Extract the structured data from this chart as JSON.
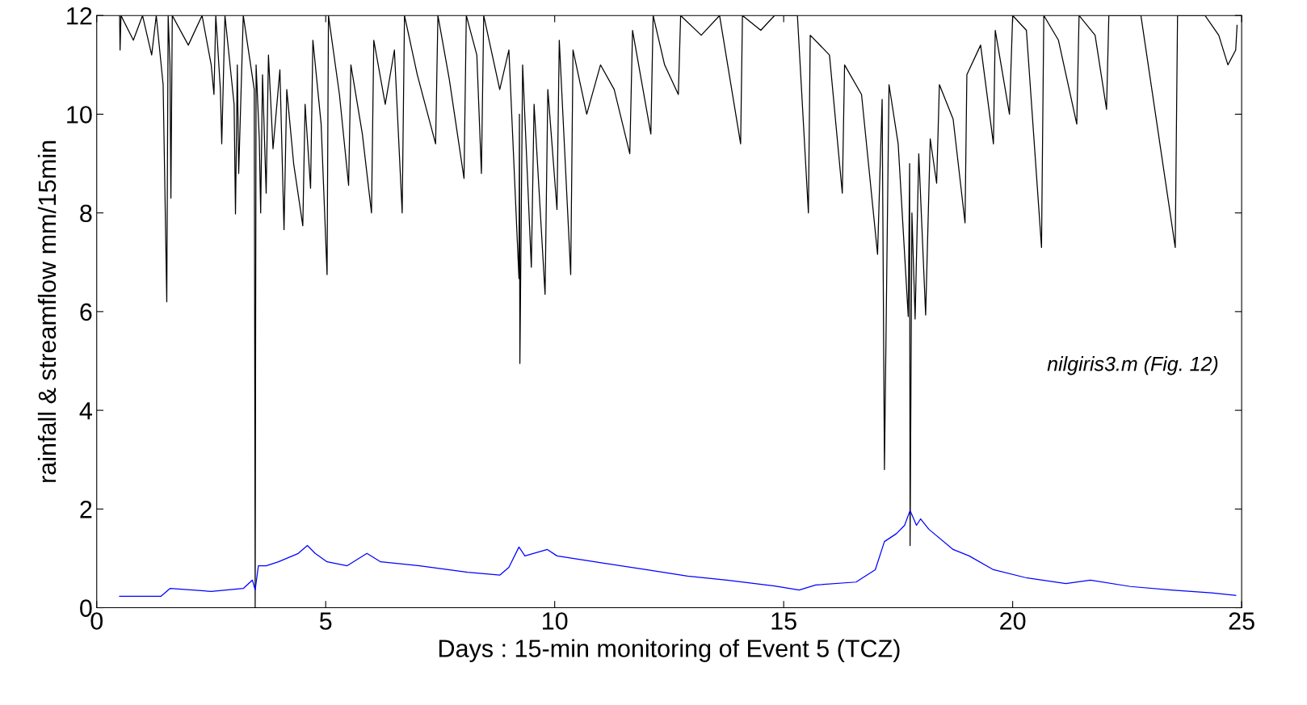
{
  "chart_data": {
    "type": "line",
    "xlabel": "Days : 15-min monitoring of Event 5 (TCZ)",
    "ylabel": "rainfall & streamflow mm/15min",
    "annotations": [
      "nilgiris3.m (Fig. 12)"
    ],
    "xlim": [
      0,
      25
    ],
    "ylim": [
      0,
      12
    ],
    "xticks": [
      0,
      5,
      10,
      15,
      20,
      25
    ],
    "yticks": [
      0,
      2,
      4,
      6,
      8,
      10,
      12
    ],
    "grid": false,
    "legend": false,
    "series": [
      {
        "color": "#000000",
        "x": [
          0.5,
          0.51,
          0.53,
          0.8,
          1.0,
          1.2,
          1.3,
          1.45,
          1.53,
          1.56,
          1.6,
          1.62,
          1.65,
          2.0,
          2.3,
          2.5,
          2.56,
          2.6,
          2.7,
          2.73,
          2.8,
          3.0,
          3.03,
          3.07,
          3.1,
          3.2,
          3.44,
          3.46,
          3.48,
          3.55,
          3.58,
          3.62,
          3.7,
          3.75,
          3.85,
          4.0,
          4.09,
          4.15,
          4.3,
          4.5,
          4.55,
          4.67,
          4.72,
          4.9,
          5.03,
          5.06,
          5.3,
          5.5,
          5.55,
          5.8,
          6.0,
          6.05,
          6.3,
          6.5,
          6.67,
          6.72,
          7.0,
          7.4,
          7.45,
          7.7,
          8.02,
          8.07,
          8.3,
          8.4,
          8.45,
          8.8,
          9.0,
          9.22,
          9.23,
          9.24,
          9.3,
          9.49,
          9.55,
          9.79,
          9.85,
          10.05,
          10.1,
          10.35,
          10.4,
          10.7,
          11.0,
          11.3,
          11.64,
          11.7,
          12.1,
          12.15,
          12.4,
          12.7,
          12.75,
          13.2,
          13.6,
          14.06,
          14.1,
          14.5,
          14.8,
          15.3,
          15.54,
          15.58,
          16.0,
          16.28,
          16.33,
          16.7,
          17.05,
          17.15,
          17.2,
          17.3,
          17.5,
          17.72,
          17.75,
          17.76,
          17.8,
          17.87,
          17.95,
          18.1,
          18.2,
          18.34,
          18.4,
          18.7,
          18.96,
          19.0,
          19.3,
          19.58,
          19.62,
          19.93,
          20.0,
          20.3,
          20.63,
          20.68,
          21.0,
          21.4,
          21.45,
          21.8,
          22.05,
          22.1,
          22.8,
          23.55,
          23.6,
          24.2,
          24.5,
          24.7,
          24.87,
          24.9
        ],
        "values": [
          12,
          11.3,
          12,
          11.5,
          12,
          11.2,
          12,
          10.6,
          6.2,
          12,
          11.0,
          8.3,
          12,
          11.4,
          12,
          11.0,
          10.4,
          12,
          10.5,
          9.4,
          12,
          10.2,
          7.98,
          11.0,
          8.8,
          12,
          10.5,
          0,
          11.0,
          9.5,
          8.0,
          10.8,
          8.4,
          11.2,
          9.3,
          10.9,
          7.66,
          10.5,
          9.0,
          7.74,
          10.2,
          8.5,
          11.5,
          9.8,
          6.75,
          12,
          10.4,
          8.56,
          11.0,
          9.6,
          8.0,
          11.5,
          10.2,
          11.3,
          8.0,
          12,
          10.8,
          9.4,
          12,
          10.7,
          8.7,
          12,
          11.2,
          8.8,
          12,
          10.5,
          11.3,
          6.67,
          10.0,
          4.95,
          11.0,
          6.9,
          10.2,
          6.35,
          10.5,
          8.07,
          11.5,
          6.75,
          11.3,
          10.0,
          11.0,
          10.5,
          9.2,
          11.7,
          9.6,
          12,
          11.0,
          10.4,
          12,
          11.6,
          12,
          9.4,
          12,
          11.7,
          12,
          12,
          8.0,
          11.6,
          11.2,
          8.4,
          11.0,
          10.4,
          7.16,
          10.3,
          2.8,
          10.6,
          9.4,
          5.9,
          9.0,
          1.26,
          8.0,
          5.85,
          9.2,
          5.93,
          9.5,
          8.6,
          10.6,
          9.9,
          7.8,
          10.8,
          11.4,
          9.4,
          11.7,
          10.0,
          12,
          11.7,
          7.3,
          12,
          11.5,
          9.8,
          12,
          11.6,
          10.1,
          12,
          12,
          7.3,
          12,
          12,
          11.6,
          11.0,
          11.3,
          11.8
        ]
      },
      {
        "color": "#0000ff",
        "x": [
          0.5,
          1.4,
          1.6,
          2.5,
          3.2,
          3.4,
          3.46,
          3.53,
          3.7,
          3.97,
          4.4,
          4.6,
          4.77,
          5.03,
          5.47,
          5.9,
          6.2,
          7.05,
          8.1,
          8.8,
          9.0,
          9.22,
          9.35,
          9.84,
          10.05,
          11.1,
          12.0,
          12.9,
          13.76,
          14.8,
          15.34,
          15.7,
          16.58,
          17.0,
          17.2,
          17.46,
          17.64,
          17.76,
          17.9,
          17.99,
          18.17,
          18.7,
          19.05,
          19.58,
          20.28,
          21.16,
          21.7,
          22.57,
          23.46,
          24.34,
          24.87
        ],
        "values": [
          0.23,
          0.23,
          0.39,
          0.33,
          0.39,
          0.56,
          0.36,
          0.85,
          0.85,
          0.93,
          1.1,
          1.26,
          1.1,
          0.93,
          0.85,
          1.1,
          0.93,
          0.85,
          0.72,
          0.66,
          0.82,
          1.23,
          1.05,
          1.18,
          1.05,
          0.9,
          0.77,
          0.64,
          0.56,
          0.44,
          0.36,
          0.46,
          0.52,
          0.77,
          1.34,
          1.5,
          1.67,
          1.97,
          1.67,
          1.8,
          1.59,
          1.18,
          1.05,
          0.77,
          0.61,
          0.49,
          0.56,
          0.43,
          0.36,
          0.3,
          0.25
        ]
      }
    ]
  }
}
